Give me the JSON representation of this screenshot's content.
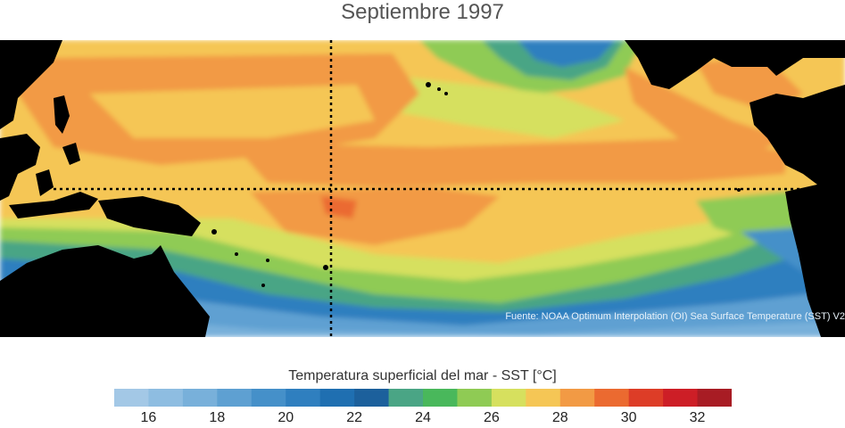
{
  "title": "Septiembre 1997",
  "source": "Fuente: NOAA Optimum Interpolation (OI) Sea Surface Temperature (SST) V2",
  "colorbar": {
    "label": "Temperatura superficial del mar - SST  [°C]",
    "colors": [
      "#a3c8e6",
      "#8ebde1",
      "#78b0da",
      "#5ea0d2",
      "#4590c9",
      "#2f7fbf",
      "#1f6fb1",
      "#1c609c",
      "#4aa585",
      "#49b85b",
      "#8fcb54",
      "#d6e05e",
      "#f5c655",
      "#f29a44",
      "#eb6a30",
      "#dd3d27",
      "#cd1e26",
      "#a81c24"
    ],
    "min": 15,
    "max": 33,
    "ticks": [
      "16",
      "18",
      "20",
      "22",
      "24",
      "26",
      "28",
      "30",
      "32"
    ]
  },
  "map": {
    "region": "Pacífico tropical",
    "markers": [
      "equator-line",
      "date-line"
    ]
  }
}
